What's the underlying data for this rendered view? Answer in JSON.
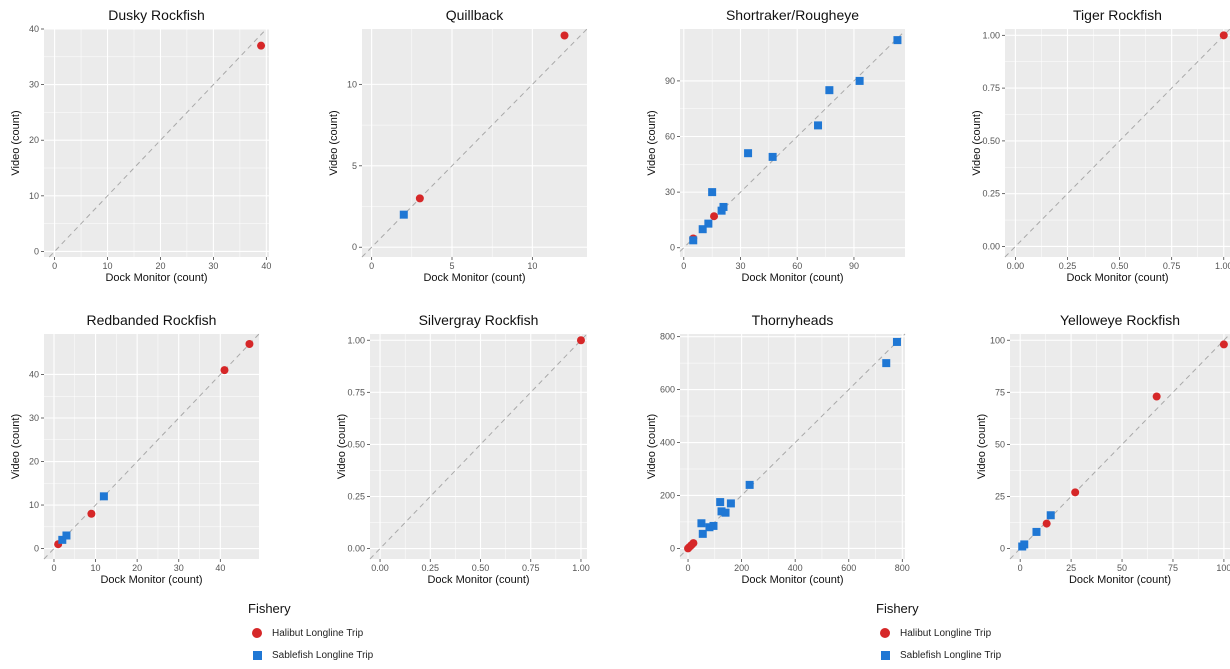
{
  "colors": {
    "halibut": "#d62728",
    "sablefish": "#1f77d4",
    "panel_bg": "#ebebeb",
    "grid_major": "#ffffff",
    "identity_line": "#a9a9a9"
  },
  "legend": {
    "title": "Fishery",
    "items": [
      {
        "label": "Halibut Longline Trip",
        "shape": "circle",
        "color": "#d62728"
      },
      {
        "label": "Sablefish Longline Trip",
        "shape": "square",
        "color": "#1f77d4"
      }
    ]
  },
  "chart_data": [
    {
      "type": "scatter",
      "title": "Dusky Rockfish",
      "xlabel": "Dock Monitor (count)",
      "ylabel": "Video (count)",
      "xlim": [
        -2,
        40.5
      ],
      "ylim": [
        -1,
        40
      ],
      "xticks": [
        0,
        10,
        20,
        30,
        40
      ],
      "yticks": [
        0,
        10,
        20,
        30,
        40
      ],
      "identity_line": true,
      "grid": true,
      "series": [
        {
          "name": "Halibut Longline Trip",
          "points": [
            [
              39,
              37
            ]
          ]
        }
      ]
    },
    {
      "type": "scatter",
      "title": "Quillback",
      "xlabel": "Dock Monitor (count)",
      "ylabel": "Video (count)",
      "xlim": [
        -0.6,
        13.4
      ],
      "ylim": [
        -0.6,
        13.4
      ],
      "xticks": [
        0,
        5,
        10
      ],
      "yticks": [
        0,
        5,
        10
      ],
      "identity_line": true,
      "grid": true,
      "series": [
        {
          "name": "Halibut Longline Trip",
          "points": [
            [
              3,
              3
            ],
            [
              12,
              13
            ]
          ]
        },
        {
          "name": "Sablefish Longline Trip",
          "points": [
            [
              2,
              2
            ]
          ]
        }
      ]
    },
    {
      "type": "scatter",
      "title": "Shortraker/Rougheye",
      "xlabel": "Dock Monitor (count)",
      "ylabel": "Video (count)",
      "xlim": [
        -2,
        117
      ],
      "ylim": [
        -5,
        118
      ],
      "xticks": [
        0,
        30,
        60,
        90
      ],
      "yticks": [
        0,
        30,
        60,
        90
      ],
      "identity_line": true,
      "grid": true,
      "series": [
        {
          "name": "Halibut Longline Trip",
          "points": [
            [
              5,
              5
            ],
            [
              16,
              17
            ]
          ]
        },
        {
          "name": "Sablefish Longline Trip",
          "points": [
            [
              5,
              4
            ],
            [
              10,
              10
            ],
            [
              13,
              13
            ],
            [
              15,
              30
            ],
            [
              20,
              20
            ],
            [
              21,
              22
            ],
            [
              34,
              51
            ],
            [
              47,
              49
            ],
            [
              71,
              66
            ],
            [
              77,
              85
            ],
            [
              93,
              90
            ],
            [
              113,
              112
            ]
          ]
        }
      ]
    },
    {
      "type": "scatter",
      "title": "Tiger Rockfish",
      "xlabel": "Dock Monitor (count)",
      "ylabel": "Video (count)",
      "xlim": [
        -0.05,
        1.03
      ],
      "ylim": [
        -0.05,
        1.03
      ],
      "xticks": [
        0,
        0.25,
        0.5,
        0.75,
        1
      ],
      "yticks": [
        0,
        0.25,
        0.5,
        0.75,
        1
      ],
      "xticklabels": [
        "0.00",
        "0.25",
        "0.50",
        "0.75",
        "1.00"
      ],
      "yticklabels": [
        "0.00",
        "0.25",
        "0.50",
        "0.75",
        "1.00"
      ],
      "identity_line": true,
      "grid": true,
      "series": [
        {
          "name": "Halibut Longline Trip",
          "points": [
            [
              1,
              1
            ]
          ]
        }
      ]
    },
    {
      "type": "scatter",
      "title": "Redbanded Rockfish",
      "xlabel": "Dock Monitor (count)",
      "ylabel": "Video (count)",
      "xlim": [
        -2.4,
        49.3
      ],
      "ylim": [
        -2.4,
        49.3
      ],
      "xticks": [
        0,
        10,
        20,
        30,
        40
      ],
      "yticks": [
        0,
        10,
        20,
        30,
        40
      ],
      "identity_line": true,
      "grid": true,
      "series": [
        {
          "name": "Halibut Longline Trip",
          "points": [
            [
              1,
              1
            ],
            [
              9,
              8
            ],
            [
              41,
              41
            ],
            [
              47,
              47
            ]
          ]
        },
        {
          "name": "Sablefish Longline Trip",
          "points": [
            [
              2,
              2
            ],
            [
              3,
              3
            ],
            [
              12,
              12
            ]
          ]
        }
      ]
    },
    {
      "type": "scatter",
      "title": "Silvergray Rockfish",
      "xlabel": "Dock Monitor (count)",
      "ylabel": "Video (count)",
      "xlim": [
        -0.05,
        1.03
      ],
      "ylim": [
        -0.05,
        1.03
      ],
      "xticks": [
        0,
        0.25,
        0.5,
        0.75,
        1
      ],
      "yticks": [
        0,
        0.25,
        0.5,
        0.75,
        1
      ],
      "xticklabels": [
        "0.00",
        "0.25",
        "0.50",
        "0.75",
        "1.00"
      ],
      "yticklabels": [
        "0.00",
        "0.25",
        "0.50",
        "0.75",
        "1.00"
      ],
      "identity_line": true,
      "grid": true,
      "series": [
        {
          "name": "Halibut Longline Trip",
          "points": [
            [
              1,
              1
            ]
          ]
        }
      ]
    },
    {
      "type": "scatter",
      "title": "Thornyheads",
      "xlabel": "Dock Monitor (count)",
      "ylabel": "Video (count)",
      "xlim": [
        -30,
        810
      ],
      "ylim": [
        -40,
        810
      ],
      "xticks": [
        0,
        200,
        400,
        600,
        800
      ],
      "yticks": [
        0,
        200,
        400,
        600,
        800
      ],
      "identity_line": true,
      "grid": true,
      "series": [
        {
          "name": "Halibut Longline Trip",
          "points": [
            [
              0,
              0
            ],
            [
              5,
              5
            ],
            [
              12,
              12
            ],
            [
              20,
              20
            ]
          ]
        },
        {
          "name": "Sablefish Longline Trip",
          "points": [
            [
              50,
              95
            ],
            [
              55,
              55
            ],
            [
              80,
              80
            ],
            [
              95,
              85
            ],
            [
              120,
              175
            ],
            [
              125,
              140
            ],
            [
              140,
              135
            ],
            [
              160,
              170
            ],
            [
              230,
              240
            ],
            [
              740,
              700
            ],
            [
              780,
              780
            ]
          ]
        }
      ]
    },
    {
      "type": "scatter",
      "title": "Yelloweye Rockfish",
      "xlabel": "Dock Monitor (count)",
      "ylabel": "Video (count)",
      "xlim": [
        -5,
        103
      ],
      "ylim": [
        -5,
        103
      ],
      "xticks": [
        0,
        25,
        50,
        75,
        100
      ],
      "yticks": [
        0,
        25,
        50,
        75,
        100
      ],
      "identity_line": true,
      "grid": true,
      "series": [
        {
          "name": "Halibut Longline Trip",
          "points": [
            [
              13,
              12
            ],
            [
              27,
              27
            ],
            [
              67,
              73
            ],
            [
              100,
              98
            ]
          ]
        },
        {
          "name": "Sablefish Longline Trip",
          "points": [
            [
              1,
              1
            ],
            [
              2,
              2
            ],
            [
              8,
              8
            ],
            [
              15,
              16
            ]
          ]
        }
      ]
    }
  ]
}
